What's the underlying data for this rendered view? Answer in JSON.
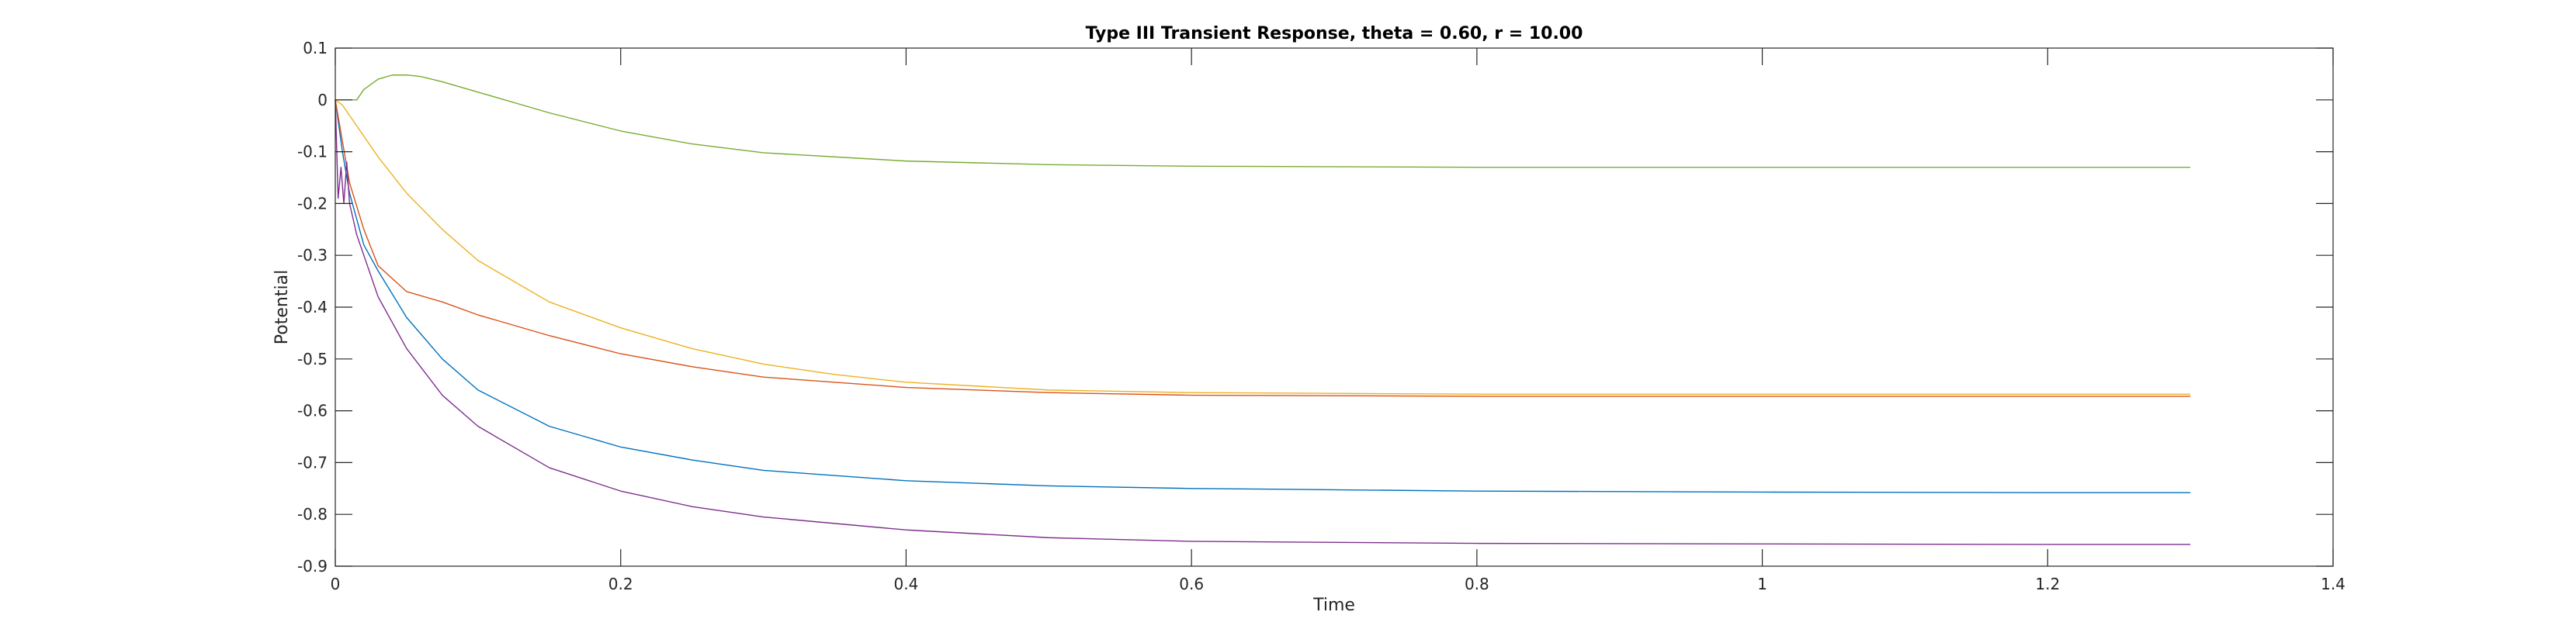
{
  "chart_data": {
    "type": "line",
    "title": "Type III Transient Response, theta = 0.60, r = 10.00",
    "xlabel": "Time",
    "ylabel": "Potential",
    "xlim": [
      0,
      1.4
    ],
    "ylim": [
      -0.9,
      0.1
    ],
    "xticks": [
      0,
      0.2,
      0.4,
      0.6,
      0.8,
      1,
      1.2,
      1.4
    ],
    "xtick_labels": [
      "0",
      "0.2",
      "0.4",
      "0.6",
      "0.8",
      "1",
      "1.2",
      "1.4"
    ],
    "yticks": [
      0.1,
      0,
      -0.1,
      -0.2,
      -0.3,
      -0.4,
      -0.5,
      -0.6,
      -0.7,
      -0.8,
      -0.9
    ],
    "ytick_labels": [
      "0.1",
      "0",
      "-0.1",
      "-0.2",
      "-0.3",
      "-0.4",
      "-0.5",
      "-0.6",
      "-0.7",
      "-0.8",
      "-0.9"
    ],
    "grid": false,
    "box": true,
    "series": [
      {
        "color": "#0072BD",
        "x": [
          0,
          0.005,
          0.01,
          0.02,
          0.03,
          0.05,
          0.075,
          0.1,
          0.15,
          0.2,
          0.25,
          0.3,
          0.4,
          0.5,
          0.6,
          0.8,
          1.0,
          1.2,
          1.3
        ],
        "y": [
          0,
          -0.1,
          -0.18,
          -0.28,
          -0.33,
          -0.42,
          -0.5,
          -0.56,
          -0.63,
          -0.67,
          -0.695,
          -0.715,
          -0.735,
          -0.745,
          -0.75,
          -0.755,
          -0.757,
          -0.758,
          -0.758
        ]
      },
      {
        "color": "#D95319",
        "x": [
          0,
          0.005,
          0.01,
          0.02,
          0.03,
          0.05,
          0.075,
          0.1,
          0.15,
          0.2,
          0.25,
          0.3,
          0.4,
          0.5,
          0.6,
          0.8,
          1.0,
          1.2,
          1.3
        ],
        "y": [
          0,
          -0.08,
          -0.16,
          -0.25,
          -0.32,
          -0.37,
          -0.39,
          -0.415,
          -0.455,
          -0.49,
          -0.515,
          -0.535,
          -0.555,
          -0.565,
          -0.57,
          -0.572,
          -0.572,
          -0.572,
          -0.572
        ]
      },
      {
        "color": "#EDB120",
        "x": [
          0,
          0.005,
          0.01,
          0.02,
          0.03,
          0.05,
          0.075,
          0.1,
          0.15,
          0.2,
          0.25,
          0.3,
          0.35,
          0.4,
          0.5,
          0.6,
          0.8,
          1.0,
          1.2,
          1.3
        ],
        "y": [
          0,
          -0.01,
          -0.03,
          -0.07,
          -0.11,
          -0.18,
          -0.25,
          -0.31,
          -0.39,
          -0.44,
          -0.48,
          -0.51,
          -0.53,
          -0.545,
          -0.56,
          -0.565,
          -0.568,
          -0.568,
          -0.568,
          -0.568
        ]
      },
      {
        "color": "#7E2F8E",
        "x": [
          0,
          0.002,
          0.004,
          0.006,
          0.008,
          0.01,
          0.015,
          0.02,
          0.03,
          0.05,
          0.075,
          0.1,
          0.15,
          0.2,
          0.25,
          0.3,
          0.4,
          0.5,
          0.6,
          0.8,
          1.0,
          1.2,
          1.3
        ],
        "y": [
          0,
          -0.19,
          -0.13,
          -0.2,
          -0.12,
          -0.2,
          -0.26,
          -0.3,
          -0.38,
          -0.48,
          -0.57,
          -0.63,
          -0.71,
          -0.755,
          -0.785,
          -0.805,
          -0.83,
          -0.845,
          -0.852,
          -0.856,
          -0.857,
          -0.858,
          -0.858
        ]
      },
      {
        "color": "#77AC30",
        "x": [
          0,
          0.005,
          0.01,
          0.015,
          0.02,
          0.03,
          0.04,
          0.05,
          0.06,
          0.075,
          0.1,
          0.15,
          0.2,
          0.25,
          0.3,
          0.4,
          0.5,
          0.6,
          0.8,
          1.0,
          1.2,
          1.3
        ],
        "y": [
          0,
          0.0,
          0.0,
          0.0,
          0.02,
          0.04,
          0.048,
          0.048,
          0.045,
          0.035,
          0.015,
          -0.025,
          -0.06,
          -0.085,
          -0.102,
          -0.118,
          -0.125,
          -0.128,
          -0.13,
          -0.13,
          -0.13,
          -0.13
        ]
      }
    ]
  }
}
